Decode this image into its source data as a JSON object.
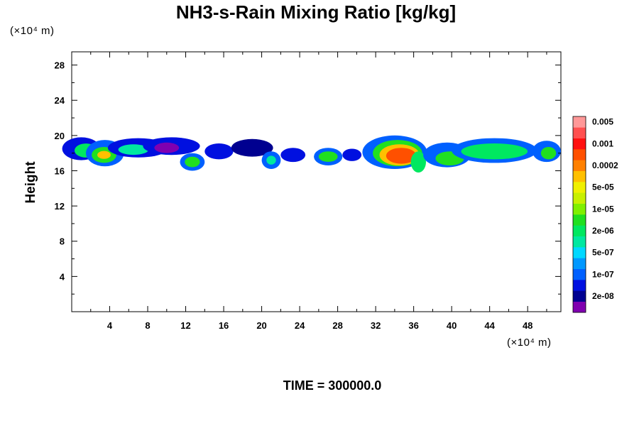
{
  "chart_data": {
    "type": "heatmap",
    "title": "NH3-s-Rain Mixing Ratio [kg/kg]",
    "ylabel": "Height",
    "y_unit_label": "(×10⁴ m)",
    "x_unit_label": "(×10⁴ m)",
    "footer": "TIME = 300000.0",
    "xlim": [
      0,
      51.5
    ],
    "ylim": [
      0,
      29.5
    ],
    "x_ticks": [
      4,
      8,
      12,
      16,
      20,
      24,
      28,
      32,
      36,
      40,
      44,
      48
    ],
    "y_ticks": [
      4,
      8,
      12,
      16,
      20,
      24,
      28
    ],
    "colorbar": {
      "colors": [
        "#8000b0",
        "#000090",
        "#0010e0",
        "#0060ff",
        "#0098ff",
        "#00d8ff",
        "#00e8a0",
        "#00e860",
        "#20e020",
        "#80f000",
        "#c8f000",
        "#f0f000",
        "#ffc000",
        "#ff8000",
        "#ff5000",
        "#ff1010",
        "#ff5050",
        "#ff9898"
      ],
      "labels": [
        "2e-08",
        "1e-07",
        "5e-07",
        "2e-06",
        "1e-05",
        "5e-05",
        "0.0002",
        "0.001",
        "0.005"
      ]
    },
    "blobs": [
      {
        "x": 1.0,
        "y": 18.5,
        "rx": 2.0,
        "ry": 1.3,
        "level": 2
      },
      {
        "x": 1.5,
        "y": 18.3,
        "rx": 1.2,
        "ry": 0.8,
        "level": 7
      },
      {
        "x": 3.5,
        "y": 18.0,
        "rx": 2.0,
        "ry": 1.5,
        "level": 3
      },
      {
        "x": 3.4,
        "y": 17.8,
        "rx": 1.3,
        "ry": 0.9,
        "level": 8
      },
      {
        "x": 3.4,
        "y": 17.8,
        "rx": 0.7,
        "ry": 0.45,
        "level": 12
      },
      {
        "x": 7.0,
        "y": 18.6,
        "rx": 3.2,
        "ry": 1.1,
        "level": 2
      },
      {
        "x": 6.5,
        "y": 18.4,
        "rx": 1.6,
        "ry": 0.6,
        "level": 6
      },
      {
        "x": 10.5,
        "y": 18.8,
        "rx": 3.0,
        "ry": 1.0,
        "level": 2
      },
      {
        "x": 10.0,
        "y": 18.6,
        "rx": 1.3,
        "ry": 0.6,
        "level": 0
      },
      {
        "x": 12.7,
        "y": 17.0,
        "rx": 1.3,
        "ry": 1.0,
        "level": 3
      },
      {
        "x": 12.7,
        "y": 17.0,
        "rx": 0.8,
        "ry": 0.6,
        "level": 8
      },
      {
        "x": 15.5,
        "y": 18.2,
        "rx": 1.5,
        "ry": 0.9,
        "level": 2
      },
      {
        "x": 19.0,
        "y": 18.6,
        "rx": 2.2,
        "ry": 1.0,
        "level": 1
      },
      {
        "x": 21.0,
        "y": 17.2,
        "rx": 1.0,
        "ry": 1.0,
        "level": 3
      },
      {
        "x": 21.0,
        "y": 17.2,
        "rx": 0.5,
        "ry": 0.5,
        "level": 6
      },
      {
        "x": 23.3,
        "y": 17.8,
        "rx": 1.3,
        "ry": 0.8,
        "level": 2
      },
      {
        "x": 27.0,
        "y": 17.6,
        "rx": 1.5,
        "ry": 1.0,
        "level": 3
      },
      {
        "x": 27.0,
        "y": 17.6,
        "rx": 1.0,
        "ry": 0.6,
        "level": 8
      },
      {
        "x": 29.5,
        "y": 17.8,
        "rx": 1.0,
        "ry": 0.7,
        "level": 2
      },
      {
        "x": 34.0,
        "y": 18.1,
        "rx": 3.4,
        "ry": 1.9,
        "level": 3
      },
      {
        "x": 34.3,
        "y": 18.0,
        "rx": 2.6,
        "ry": 1.5,
        "level": 8
      },
      {
        "x": 34.5,
        "y": 17.8,
        "rx": 2.1,
        "ry": 1.2,
        "level": 12
      },
      {
        "x": 34.7,
        "y": 17.7,
        "rx": 1.6,
        "ry": 0.9,
        "level": 14
      },
      {
        "x": 36.5,
        "y": 17.0,
        "rx": 0.8,
        "ry": 1.2,
        "level": 7
      },
      {
        "x": 39.5,
        "y": 17.8,
        "rx": 2.5,
        "ry": 1.4,
        "level": 3
      },
      {
        "x": 39.8,
        "y": 17.4,
        "rx": 1.5,
        "ry": 0.8,
        "level": 8
      },
      {
        "x": 44.5,
        "y": 18.3,
        "rx": 4.5,
        "ry": 1.4,
        "level": 3
      },
      {
        "x": 44.5,
        "y": 18.2,
        "rx": 3.5,
        "ry": 0.9,
        "level": 7
      },
      {
        "x": 50.0,
        "y": 18.2,
        "rx": 1.5,
        "ry": 1.2,
        "level": 3
      },
      {
        "x": 50.2,
        "y": 18.0,
        "rx": 0.8,
        "ry": 0.7,
        "level": 8
      }
    ]
  }
}
